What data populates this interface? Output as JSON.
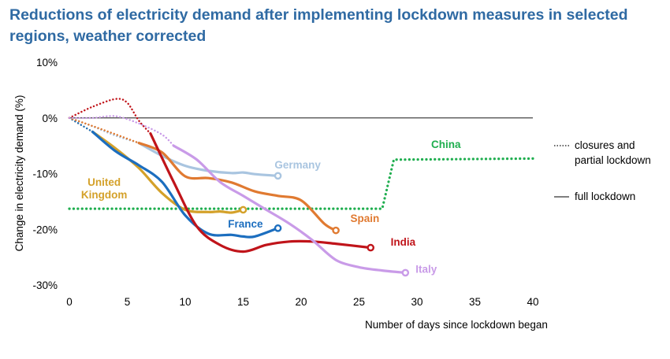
{
  "chart_data": {
    "type": "line",
    "title": "Reductions of electricity demand after implementing lockdown measures in selected regions, weather corrected",
    "xlabel": "Number of days since lockdown began",
    "ylabel": "Change in electricity demand (%)",
    "xlim": [
      0,
      40
    ],
    "ylim": [
      -30,
      10
    ],
    "xticks": [
      0,
      5,
      10,
      15,
      20,
      25,
      30,
      35,
      40
    ],
    "yticks": [
      {
        "value": 10,
        "label": "10%"
      },
      {
        "value": 0,
        "label": "0%"
      },
      {
        "value": -10,
        "label": "-10%"
      },
      {
        "value": -20,
        "label": "-20%"
      },
      {
        "value": -30,
        "label": "-30%"
      }
    ],
    "legend": {
      "placement": "right",
      "items": [
        {
          "label_lines": [
            "closures and",
            "partial lockdown"
          ],
          "style": "dotted"
        },
        {
          "label_lines": [
            "full lockdown"
          ],
          "style": "solid"
        }
      ]
    },
    "series": [
      {
        "name": "China",
        "label_lines": [
          "China"
        ],
        "color": "#1fae4f",
        "dotted_only": true,
        "dotted": [
          [
            0,
            -16.3
          ],
          [
            27,
            -16.3
          ],
          [
            28,
            -7.5
          ],
          [
            40,
            -7.3
          ]
        ],
        "solid": [],
        "label_at": [
          32.5,
          -5.4
        ]
      },
      {
        "name": "Germany",
        "label_lines": [
          "Germany"
        ],
        "color": "#a9c5e0",
        "dotted": [
          [
            0,
            0
          ],
          [
            2,
            -1.5
          ],
          [
            4,
            -3.2
          ],
          [
            6,
            -4.5
          ]
        ],
        "solid": [
          [
            6,
            -4.5
          ],
          [
            8,
            -6.8
          ],
          [
            10,
            -8.6
          ],
          [
            12,
            -9.5
          ],
          [
            14,
            -9.9
          ],
          [
            15,
            -9.8
          ],
          [
            16,
            -10.1
          ],
          [
            18,
            -10.4
          ]
        ],
        "label_at": [
          19.7,
          -9.1
        ]
      },
      {
        "name": "United Kingdom",
        "label_lines": [
          "United",
          "Kingdom"
        ],
        "color": "#d4a12a",
        "dotted": [
          [
            0,
            0
          ],
          [
            2,
            -2.5
          ]
        ],
        "solid": [
          [
            2,
            -2.5
          ],
          [
            4,
            -5.5
          ],
          [
            6,
            -9
          ],
          [
            8,
            -13.5
          ],
          [
            10,
            -16.5
          ],
          [
            12,
            -16.9
          ],
          [
            13,
            -16.8
          ],
          [
            14,
            -17
          ],
          [
            15,
            -16.5
          ]
        ],
        "label_at": [
          3,
          -12.2
        ]
      },
      {
        "name": "France",
        "label_lines": [
          "France"
        ],
        "color": "#1c6ebf",
        "dotted": [
          [
            0,
            0
          ],
          [
            2,
            -2.5
          ]
        ],
        "solid": [
          [
            2,
            -2.5
          ],
          [
            4,
            -6
          ],
          [
            6,
            -8.5
          ],
          [
            8,
            -11.5
          ],
          [
            10,
            -17.5
          ],
          [
            12,
            -20.8
          ],
          [
            14,
            -21
          ],
          [
            15,
            -21.3
          ],
          [
            16,
            -21.3
          ],
          [
            18,
            -19.8
          ]
        ],
        "label_at": [
          15.2,
          -19.7
        ]
      },
      {
        "name": "Spain",
        "label_lines": [
          "Spain"
        ],
        "color": "#e07a31",
        "dotted": [
          [
            0,
            0
          ],
          [
            3,
            -2.2
          ],
          [
            6,
            -4.5
          ]
        ],
        "solid": [
          [
            6,
            -4.5
          ],
          [
            8,
            -6.2
          ],
          [
            10,
            -10.5
          ],
          [
            12,
            -10.8
          ],
          [
            14,
            -11.6
          ],
          [
            16,
            -13.2
          ],
          [
            18,
            -14
          ],
          [
            20,
            -14.8
          ],
          [
            22,
            -19
          ],
          [
            23,
            -20.2
          ]
        ],
        "label_at": [
          25.5,
          -18.7
        ]
      },
      {
        "name": "India",
        "label_lines": [
          "India"
        ],
        "color": "#c0141a",
        "dotted": [
          [
            0,
            0
          ],
          [
            2,
            2
          ],
          [
            4,
            3.4
          ],
          [
            5,
            2.7
          ],
          [
            6,
            -0.5
          ],
          [
            7,
            -2.8
          ]
        ],
        "solid": [
          [
            7,
            -2.8
          ],
          [
            9,
            -11.5
          ],
          [
            11,
            -19.5
          ],
          [
            13,
            -22.8
          ],
          [
            15,
            -24
          ],
          [
            17,
            -22.8
          ],
          [
            19,
            -22.2
          ],
          [
            21,
            -22.2
          ],
          [
            23,
            -22.6
          ],
          [
            26,
            -23.3
          ]
        ],
        "label_at": [
          28.8,
          -22.9
        ]
      },
      {
        "name": "Italy",
        "label_lines": [
          "Italy"
        ],
        "color": "#c99be8",
        "dotted": [
          [
            0,
            0
          ],
          [
            2,
            0
          ],
          [
            4,
            0.3
          ],
          [
            6,
            -1
          ],
          [
            8,
            -3
          ],
          [
            9,
            -5
          ]
        ],
        "solid": [
          [
            9,
            -5
          ],
          [
            11,
            -7.5
          ],
          [
            13,
            -11.5
          ],
          [
            15,
            -14
          ],
          [
            17,
            -16.5
          ],
          [
            19,
            -19
          ],
          [
            21,
            -22
          ],
          [
            23,
            -25.5
          ],
          [
            25,
            -26.8
          ],
          [
            27,
            -27.4
          ],
          [
            29,
            -27.8
          ]
        ],
        "label_at": [
          30.8,
          -27.8
        ]
      }
    ]
  }
}
